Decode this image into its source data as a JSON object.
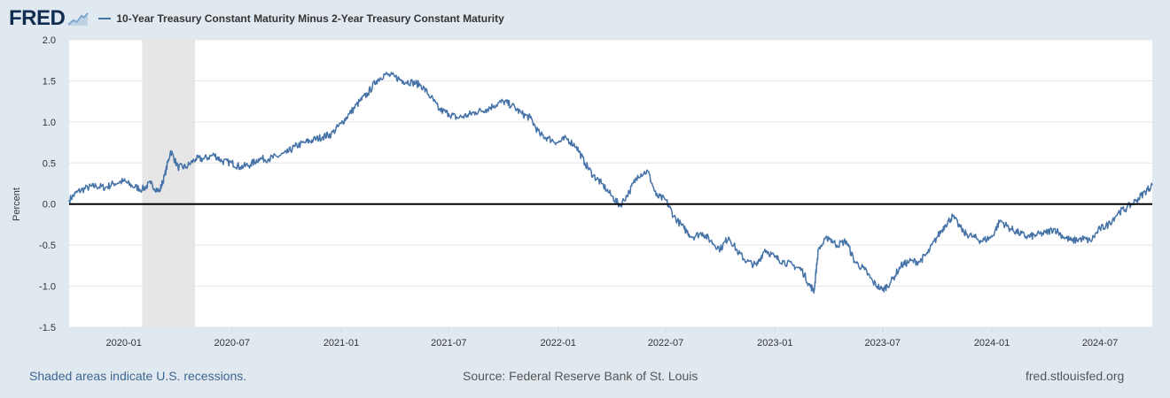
{
  "header": {
    "logo_text": "FRED",
    "logo_icon": "chart-line-icon",
    "legend_label": "10-Year Treasury Constant Maturity Minus 2-Year Treasury Constant Maturity"
  },
  "footer": {
    "left": "Shaded areas indicate U.S. recessions.",
    "middle": "Source: Federal Reserve Bank of St. Louis",
    "right": "fred.stlouisfed.org"
  },
  "colors": {
    "background": "#e1e9f0",
    "plot_background": "#ffffff",
    "series": "#4572a7",
    "recession": "#e6e6e6",
    "zero_line": "#000000",
    "grid": "#e5e5e5"
  },
  "chart_data": {
    "type": "line",
    "title": "",
    "ylabel": "Percent",
    "xlabel": "",
    "ylim": [
      -1.5,
      2.0
    ],
    "y_ticks": [
      "2.0",
      "1.5",
      "1.0",
      "0.5",
      "0.0",
      "-0.5",
      "-1.0",
      "-1.5"
    ],
    "x_ticks": [
      "2020-01",
      "2020-07",
      "2021-01",
      "2021-07",
      "2022-01",
      "2022-07",
      "2023-01",
      "2023-07",
      "2024-01",
      "2024-07"
    ],
    "xlim": [
      "2019-10-01",
      "2024-09-27"
    ],
    "grid": "horizontal",
    "recessions": [
      {
        "start": "2020-02-01",
        "end": "2020-04-30"
      }
    ],
    "reference_line": 0,
    "series": [
      {
        "name": "10-Year Treasury Constant Maturity Minus 2-Year Treasury Constant Maturity",
        "x": [
          "2019-10-01",
          "2019-10-15",
          "2019-11-01",
          "2019-11-15",
          "2019-12-01",
          "2019-12-15",
          "2020-01-01",
          "2020-01-15",
          "2020-02-01",
          "2020-02-15",
          "2020-03-01",
          "2020-03-10",
          "2020-03-20",
          "2020-04-01",
          "2020-04-15",
          "2020-05-01",
          "2020-05-15",
          "2020-06-01",
          "2020-06-15",
          "2020-07-01",
          "2020-07-15",
          "2020-08-01",
          "2020-08-15",
          "2020-09-01",
          "2020-09-15",
          "2020-10-01",
          "2020-10-15",
          "2020-11-01",
          "2020-11-15",
          "2020-12-01",
          "2020-12-15",
          "2021-01-01",
          "2021-01-15",
          "2021-02-01",
          "2021-02-15",
          "2021-03-01",
          "2021-03-15",
          "2021-04-01",
          "2021-04-15",
          "2021-05-01",
          "2021-05-15",
          "2021-06-01",
          "2021-06-15",
          "2021-07-01",
          "2021-07-15",
          "2021-08-01",
          "2021-08-15",
          "2021-09-01",
          "2021-09-15",
          "2021-10-01",
          "2021-10-15",
          "2021-11-01",
          "2021-11-15",
          "2021-12-01",
          "2021-12-15",
          "2022-01-01",
          "2022-01-15",
          "2022-02-01",
          "2022-02-15",
          "2022-03-01",
          "2022-03-15",
          "2022-04-01",
          "2022-04-15",
          "2022-05-01",
          "2022-05-15",
          "2022-06-01",
          "2022-06-15",
          "2022-07-01",
          "2022-07-15",
          "2022-08-01",
          "2022-08-15",
          "2022-09-01",
          "2022-09-15",
          "2022-10-01",
          "2022-10-15",
          "2022-11-01",
          "2022-11-15",
          "2022-12-01",
          "2022-12-15",
          "2023-01-01",
          "2023-01-15",
          "2023-02-01",
          "2023-02-15",
          "2023-03-01",
          "2023-03-08",
          "2023-03-15",
          "2023-04-01",
          "2023-04-15",
          "2023-05-01",
          "2023-05-15",
          "2023-06-01",
          "2023-06-15",
          "2023-07-01",
          "2023-07-15",
          "2023-08-01",
          "2023-08-15",
          "2023-09-01",
          "2023-09-15",
          "2023-10-01",
          "2023-10-15",
          "2023-10-27",
          "2023-11-15",
          "2023-12-01",
          "2023-12-15",
          "2024-01-01",
          "2024-01-15",
          "2024-02-01",
          "2024-02-15",
          "2024-03-01",
          "2024-03-15",
          "2024-04-01",
          "2024-04-15",
          "2024-05-01",
          "2024-05-15",
          "2024-06-01",
          "2024-06-15",
          "2024-07-01",
          "2024-07-15",
          "2024-08-01",
          "2024-08-15",
          "2024-09-01",
          "2024-09-15",
          "2024-09-27"
        ],
        "y": [
          0.05,
          0.15,
          0.2,
          0.22,
          0.2,
          0.25,
          0.28,
          0.22,
          0.18,
          0.25,
          0.15,
          0.35,
          0.65,
          0.45,
          0.45,
          0.55,
          0.55,
          0.6,
          0.52,
          0.5,
          0.45,
          0.48,
          0.55,
          0.55,
          0.58,
          0.62,
          0.7,
          0.75,
          0.78,
          0.82,
          0.85,
          0.98,
          1.1,
          1.25,
          1.35,
          1.5,
          1.58,
          1.55,
          1.5,
          1.48,
          1.45,
          1.3,
          1.15,
          1.1,
          1.05,
          1.08,
          1.12,
          1.15,
          1.2,
          1.25,
          1.2,
          1.1,
          1.05,
          0.85,
          0.8,
          0.75,
          0.8,
          0.7,
          0.5,
          0.35,
          0.25,
          0.1,
          -0.02,
          0.15,
          0.35,
          0.4,
          0.1,
          0.05,
          -0.15,
          -0.3,
          -0.4,
          -0.35,
          -0.45,
          -0.55,
          -0.4,
          -0.6,
          -0.7,
          -0.75,
          -0.55,
          -0.65,
          -0.7,
          -0.75,
          -0.8,
          -1.0,
          -1.05,
          -0.55,
          -0.4,
          -0.5,
          -0.45,
          -0.7,
          -0.8,
          -0.95,
          -1.05,
          -0.95,
          -0.75,
          -0.7,
          -0.7,
          -0.6,
          -0.4,
          -0.25,
          -0.15,
          -0.35,
          -0.4,
          -0.45,
          -0.4,
          -0.2,
          -0.3,
          -0.35,
          -0.4,
          -0.38,
          -0.35,
          -0.3,
          -0.4,
          -0.45,
          -0.42,
          -0.45,
          -0.3,
          -0.25,
          -0.1,
          -0.05,
          0.05,
          0.15,
          0.23
        ]
      }
    ]
  }
}
